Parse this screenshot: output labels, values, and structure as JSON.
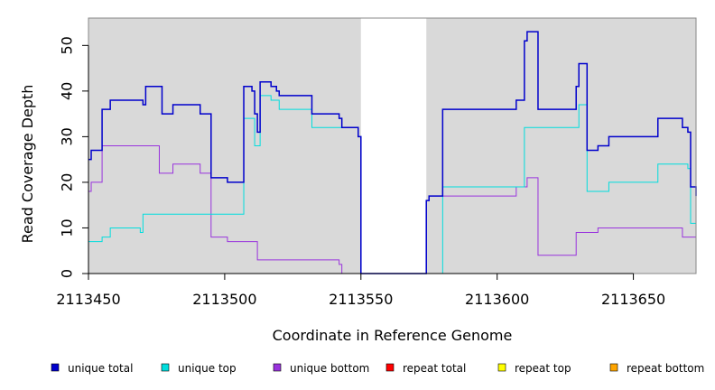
{
  "chart_data": {
    "type": "line",
    "step": true,
    "title": "",
    "xlabel": "Coordinate in Reference Genome",
    "ylabel": "Read Coverage Depth",
    "xlim": [
      2113450,
      2113673
    ],
    "ylim": [
      0,
      56
    ],
    "xticks": [
      2113450,
      2113500,
      2113550,
      2113600,
      2113650
    ],
    "yticks": [
      0,
      10,
      20,
      30,
      40,
      50
    ],
    "grid": false,
    "background_color": "#d9d9d9",
    "gap_region": {
      "x": [
        2113550,
        2113574
      ],
      "color": "#ffffff"
    },
    "legend_position": "bottom",
    "series": [
      {
        "name": "unique total",
        "color": "#0000cc",
        "points": [
          [
            2113450,
            25
          ],
          [
            2113451,
            27
          ],
          [
            2113455,
            36
          ],
          [
            2113458,
            38
          ],
          [
            2113470,
            37
          ],
          [
            2113471,
            41
          ],
          [
            2113477,
            35
          ],
          [
            2113481,
            37
          ],
          [
            2113491,
            35
          ],
          [
            2113495,
            21
          ],
          [
            2113501,
            20
          ],
          [
            2113507,
            41
          ],
          [
            2113510,
            40
          ],
          [
            2113511,
            35
          ],
          [
            2113512,
            31
          ],
          [
            2113513,
            42
          ],
          [
            2113517,
            41
          ],
          [
            2113519,
            40
          ],
          [
            2113520,
            39
          ],
          [
            2113532,
            35
          ],
          [
            2113542,
            34
          ],
          [
            2113543,
            32
          ],
          [
            2113549,
            30
          ],
          [
            2113550,
            0
          ],
          [
            2113574,
            16
          ],
          [
            2113575,
            17
          ],
          [
            2113580,
            36
          ],
          [
            2113607,
            38
          ],
          [
            2113610,
            51
          ],
          [
            2113611,
            53
          ],
          [
            2113615,
            36
          ],
          [
            2113629,
            41
          ],
          [
            2113630,
            46
          ],
          [
            2113633,
            27
          ],
          [
            2113637,
            28
          ],
          [
            2113641,
            30
          ],
          [
            2113659,
            34
          ],
          [
            2113668,
            32
          ],
          [
            2113670,
            31
          ],
          [
            2113671,
            19
          ],
          [
            2113673,
            17
          ]
        ]
      },
      {
        "name": "unique top",
        "color": "#00dddd",
        "points": [
          [
            2113450,
            7
          ],
          [
            2113455,
            8
          ],
          [
            2113458,
            10
          ],
          [
            2113469,
            9
          ],
          [
            2113470,
            13
          ],
          [
            2113507,
            34
          ],
          [
            2113511,
            28
          ],
          [
            2113513,
            39
          ],
          [
            2113517,
            38
          ],
          [
            2113520,
            36
          ],
          [
            2113532,
            32
          ],
          [
            2113543,
            32
          ],
          [
            2113549,
            30
          ],
          [
            2113550,
            0
          ],
          [
            2113574,
            0
          ],
          [
            2113580,
            19
          ],
          [
            2113610,
            32
          ],
          [
            2113630,
            37
          ],
          [
            2113633,
            18
          ],
          [
            2113641,
            20
          ],
          [
            2113659,
            24
          ],
          [
            2113670,
            23
          ],
          [
            2113671,
            11
          ],
          [
            2113673,
            11
          ]
        ]
      },
      {
        "name": "unique bottom",
        "color": "#9933dd",
        "points": [
          [
            2113450,
            18
          ],
          [
            2113451,
            20
          ],
          [
            2113455,
            28
          ],
          [
            2113476,
            22
          ],
          [
            2113481,
            24
          ],
          [
            2113491,
            22
          ],
          [
            2113495,
            8
          ],
          [
            2113501,
            7
          ],
          [
            2113512,
            3
          ],
          [
            2113542,
            2
          ],
          [
            2113543,
            0
          ],
          [
            2113550,
            0
          ],
          [
            2113574,
            16
          ],
          [
            2113575,
            17
          ],
          [
            2113607,
            19
          ],
          [
            2113611,
            21
          ],
          [
            2113615,
            4
          ],
          [
            2113629,
            9
          ],
          [
            2113637,
            10
          ],
          [
            2113668,
            8
          ],
          [
            2113673,
            6
          ]
        ]
      },
      {
        "name": "repeat total",
        "color": "#ff0000",
        "points": [
          [
            2113450,
            0
          ],
          [
            2113673,
            0
          ]
        ]
      },
      {
        "name": "repeat top",
        "color": "#ffff00",
        "points": [
          [
            2113450,
            0
          ],
          [
            2113673,
            0
          ]
        ]
      },
      {
        "name": "repeat bottom",
        "color": "#ffa500",
        "points": [
          [
            2113450,
            0
          ],
          [
            2113673,
            0
          ]
        ]
      }
    ]
  }
}
